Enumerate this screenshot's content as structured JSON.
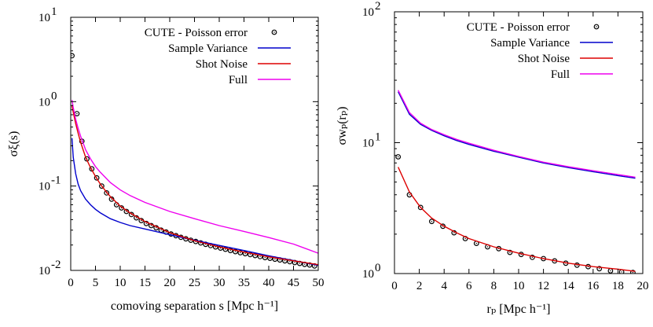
{
  "chart_data": [
    {
      "type": "line",
      "xlabel": "comoving separation s [Mpc h⁻¹]",
      "ylabel": "σξ(s)",
      "x_scale": "linear",
      "y_scale": "log",
      "xlim": [
        0,
        50
      ],
      "ylim": [
        0.01,
        10
      ],
      "x_ticks": [
        0,
        5,
        10,
        15,
        20,
        25,
        30,
        35,
        40,
        45,
        50
      ],
      "y_ticks": [
        {
          "value": 0.01,
          "base": "10",
          "exp": "-2"
        },
        {
          "value": 0.1,
          "base": "10",
          "exp": "-1"
        },
        {
          "value": 1,
          "base": "10",
          "exp": "0"
        },
        {
          "value": 10,
          "base": "10",
          "exp": "1"
        }
      ],
      "legend_position": "top-right",
      "series": [
        {
          "name": "CUTE - Poisson error",
          "style": "points",
          "color": "#000000",
          "x": [
            0.25,
            1.25,
            2.25,
            3.25,
            4.25,
            5.25,
            6.25,
            7.25,
            8.25,
            9.25,
            10.25,
            11.25,
            12.25,
            13.25,
            14.25,
            15.25,
            16.25,
            17.25,
            18.25,
            19.25,
            20.25,
            21.25,
            22.25,
            23.25,
            24.25,
            25.25,
            26.25,
            27.25,
            28.25,
            29.25,
            30.25,
            31.25,
            32.25,
            33.25,
            34.25,
            35.25,
            36.25,
            37.25,
            38.25,
            39.25,
            40.25,
            41.25,
            42.25,
            43.25,
            44.25,
            45.25,
            46.25,
            47.25,
            48.25,
            49.25
          ],
          "y": [
            3.5,
            0.72,
            0.34,
            0.21,
            0.16,
            0.125,
            0.1,
            0.083,
            0.07,
            0.06,
            0.055,
            0.05,
            0.046,
            0.042,
            0.039,
            0.036,
            0.034,
            0.032,
            0.03,
            0.0285,
            0.027,
            0.0258,
            0.0247,
            0.0237,
            0.0228,
            0.022,
            0.0212,
            0.0204,
            0.0197,
            0.019,
            0.0184,
            0.0178,
            0.0172,
            0.0167,
            0.0162,
            0.0158,
            0.0154,
            0.015,
            0.0146,
            0.0142,
            0.0139,
            0.0136,
            0.0133,
            0.013,
            0.0127,
            0.0124,
            0.0121,
            0.0118,
            0.0116,
            0.0113
          ]
        },
        {
          "name": "Sample Variance",
          "style": "line",
          "color": "#0000cc",
          "x": [
            0.25,
            0.5,
            1,
            1.5,
            2,
            3,
            4,
            5,
            6,
            8,
            10,
            12,
            15,
            20,
            25,
            30,
            35,
            40,
            45,
            50
          ],
          "y": [
            0.37,
            0.22,
            0.14,
            0.105,
            0.088,
            0.07,
            0.06,
            0.053,
            0.048,
            0.041,
            0.037,
            0.034,
            0.031,
            0.0265,
            0.0228,
            0.0198,
            0.0172,
            0.0149,
            0.0131,
            0.0115
          ]
        },
        {
          "name": "Shot Noise",
          "style": "line",
          "color": "#dd0000",
          "x": [
            0.25,
            0.5,
            1,
            1.5,
            2,
            3,
            4,
            5,
            6,
            7,
            8,
            10,
            12,
            15,
            20,
            25,
            30,
            35,
            40,
            45,
            50
          ],
          "y": [
            0.9,
            0.75,
            0.55,
            0.42,
            0.33,
            0.22,
            0.165,
            0.13,
            0.105,
            0.088,
            0.075,
            0.058,
            0.048,
            0.038,
            0.028,
            0.0225,
            0.019,
            0.0165,
            0.0145,
            0.013,
            0.0117
          ]
        },
        {
          "name": "Full",
          "style": "line",
          "color": "#ee00ee",
          "x": [
            0.25,
            0.5,
            1,
            1.5,
            2,
            3,
            4,
            5,
            6,
            8,
            10,
            12,
            15,
            20,
            25,
            30,
            35,
            40,
            45,
            50
          ],
          "y": [
            1.05,
            0.85,
            0.62,
            0.48,
            0.39,
            0.27,
            0.21,
            0.17,
            0.145,
            0.11,
            0.09,
            0.077,
            0.064,
            0.05,
            0.041,
            0.034,
            0.029,
            0.0245,
            0.0205,
            0.016
          ]
        }
      ]
    },
    {
      "type": "line",
      "xlabel": "rₚ [Mpc h⁻¹]",
      "ylabel": "σwₚ(rₚ)",
      "x_scale": "linear",
      "y_scale": "log",
      "xlim": [
        0,
        20
      ],
      "ylim": [
        1,
        100
      ],
      "x_ticks": [
        0,
        2,
        4,
        6,
        8,
        10,
        12,
        14,
        16,
        18,
        20
      ],
      "y_ticks": [
        {
          "value": 1,
          "base": "10",
          "exp": "0"
        },
        {
          "value": 10,
          "base": "10",
          "exp": "1"
        },
        {
          "value": 100,
          "base": "10",
          "exp": "2"
        }
      ],
      "legend_position": "top-right",
      "series": [
        {
          "name": "CUTE - Poisson error",
          "style": "points",
          "color": "#000000",
          "x": [
            0.3,
            1.2,
            2.1,
            3.0,
            3.9,
            4.8,
            5.7,
            6.6,
            7.5,
            8.4,
            9.3,
            10.2,
            11.1,
            12.0,
            12.9,
            13.8,
            14.7,
            15.6,
            16.5,
            17.4,
            18.3,
            19.2
          ],
          "y": [
            7.8,
            4.0,
            3.2,
            2.5,
            2.3,
            2.05,
            1.85,
            1.7,
            1.6,
            1.55,
            1.45,
            1.4,
            1.33,
            1.3,
            1.25,
            1.2,
            1.16,
            1.13,
            1.09,
            1.05,
            1.03,
            1.02
          ]
        },
        {
          "name": "Sample Variance",
          "style": "line",
          "color": "#0000cc",
          "x": [
            0.3,
            1.2,
            2.1,
            3,
            4,
            5,
            6,
            8,
            10,
            12,
            14,
            16,
            18,
            19.4
          ],
          "y": [
            24.5,
            16.5,
            13.8,
            12.4,
            11.3,
            10.4,
            9.7,
            8.6,
            7.75,
            7.0,
            6.45,
            6.0,
            5.6,
            5.35
          ]
        },
        {
          "name": "Shot Noise",
          "style": "line",
          "color": "#dd0000",
          "x": [
            0.3,
            1.2,
            2.1,
            3,
            4,
            5,
            6,
            8,
            10,
            12,
            14,
            16,
            18,
            19.4
          ],
          "y": [
            6.5,
            4.2,
            3.2,
            2.65,
            2.3,
            2.05,
            1.85,
            1.6,
            1.43,
            1.3,
            1.2,
            1.13,
            1.08,
            1.04
          ]
        },
        {
          "name": "Full",
          "style": "line",
          "color": "#ee00ee",
          "x": [
            0.3,
            1.2,
            2.1,
            3,
            4,
            5,
            6,
            8,
            10,
            12,
            14,
            16,
            18,
            19.4
          ],
          "y": [
            25.2,
            17.0,
            14.1,
            12.6,
            11.5,
            10.6,
            9.9,
            8.75,
            7.85,
            7.1,
            6.55,
            6.1,
            5.7,
            5.45
          ]
        }
      ]
    }
  ]
}
